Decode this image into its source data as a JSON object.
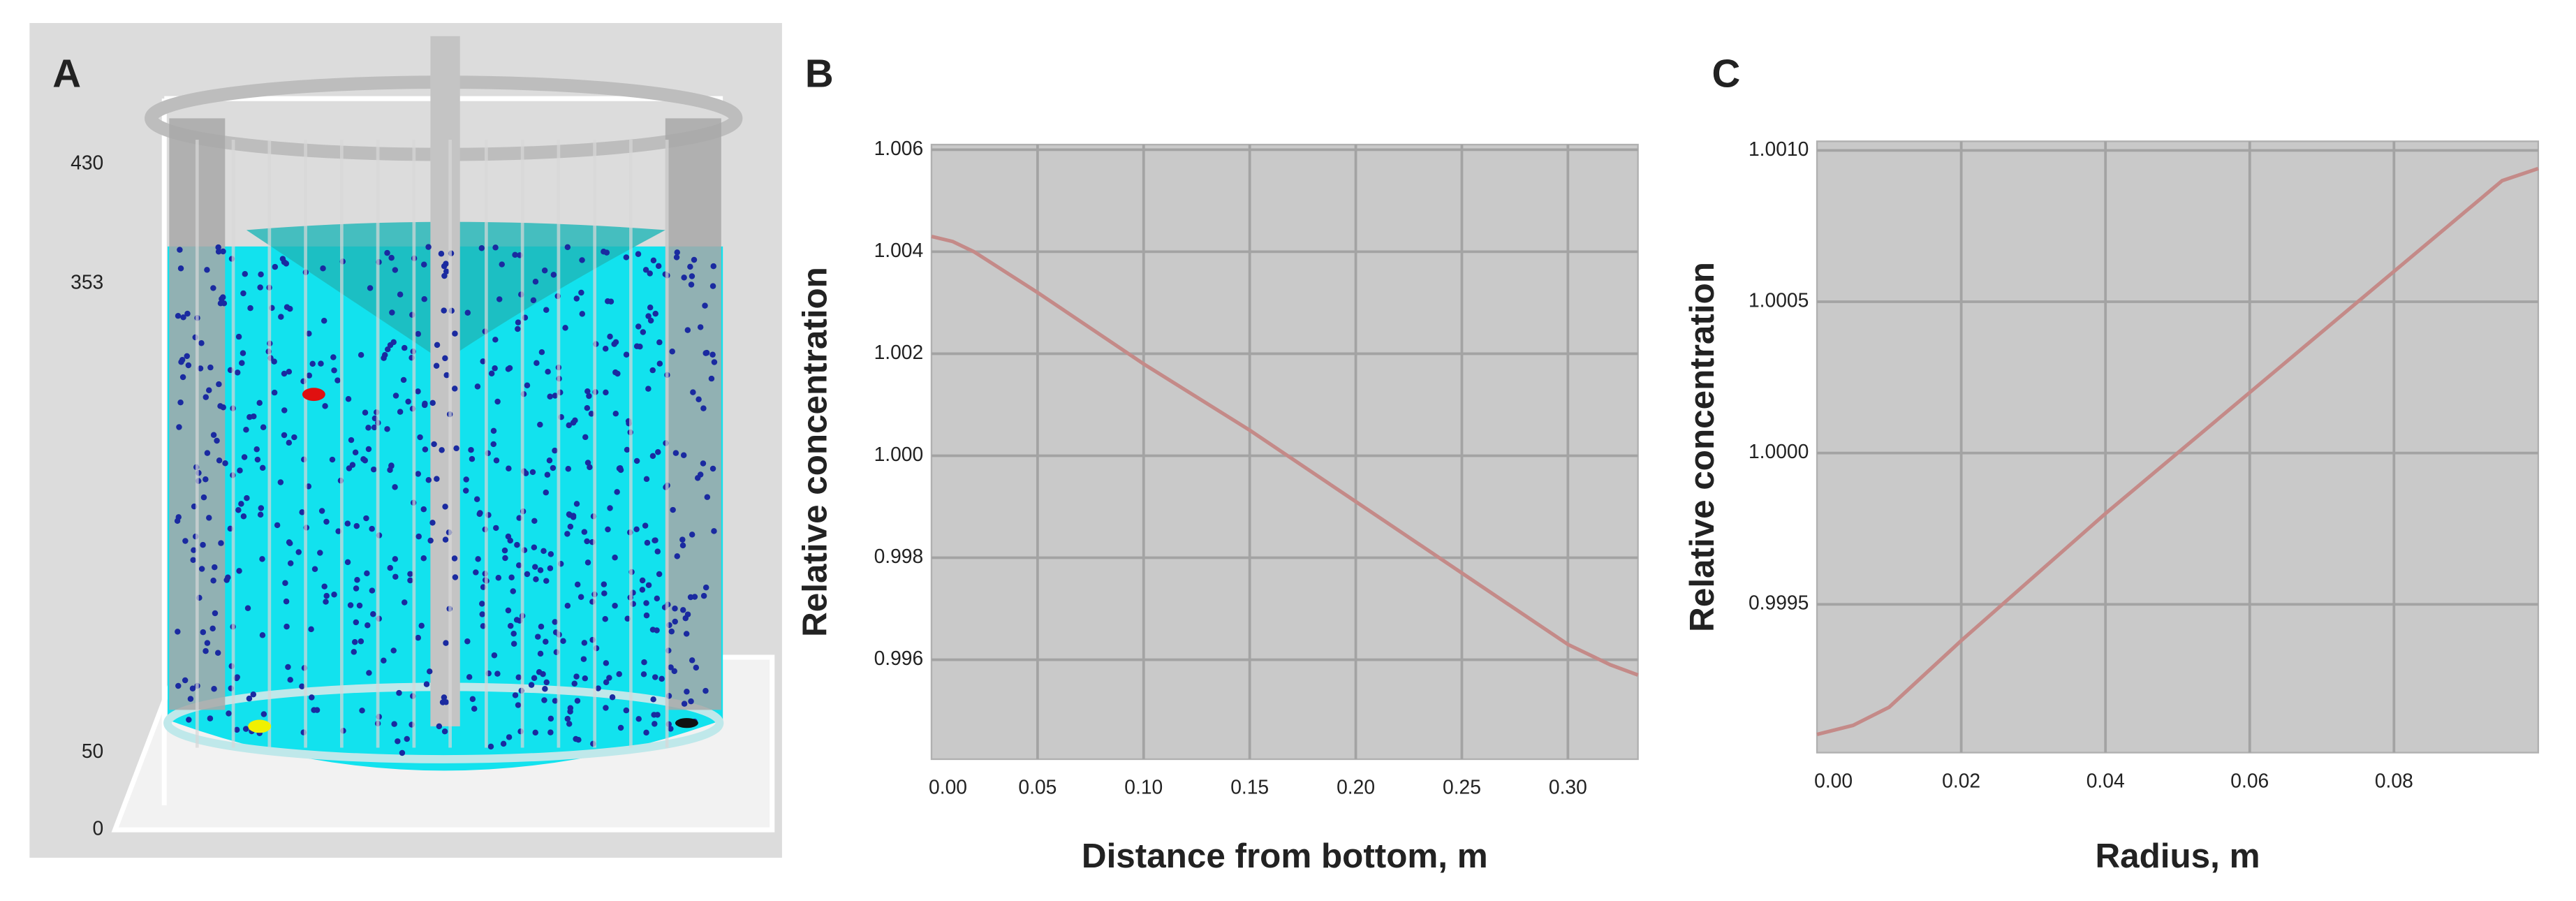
{
  "illustration": {
    "label": "A",
    "yticks": [
      430,
      353,
      50,
      0
    ]
  },
  "chart_data": [
    {
      "type": "line",
      "label": "B",
      "xlabel": "Distance from bottom, m",
      "ylabel": "Relative concentration",
      "x": [
        0,
        0.01,
        0.02,
        0.05,
        0.1,
        0.15,
        0.2,
        0.25,
        0.3,
        0.32,
        0.333
      ],
      "series": [
        {
          "color": "#c48a88",
          "values": [
            1.0043,
            1.0042,
            1.004,
            1.0032,
            1.0018,
            1.0005,
            0.9991,
            0.9977,
            0.9963,
            0.9959,
            0.9957
          ]
        }
      ],
      "xlim": [
        0,
        0.333
      ],
      "ylim": [
        0.99405,
        1.0061
      ],
      "xticks": [
        {
          "value": 0,
          "label": "0.00"
        },
        0.05,
        {
          "value": 0.1,
          "label": "0.10"
        },
        0.15,
        {
          "value": 0.2,
          "label": "0.20"
        },
        0.25,
        {
          "value": 0.3,
          "label": "0.30"
        }
      ],
      "yticks": [
        1.006,
        1.004,
        1.002,
        {
          "value": 1.0,
          "label": "1.000"
        },
        0.998,
        0.996
      ],
      "grid": true
    },
    {
      "type": "line",
      "label": "C",
      "xlabel": "Radius, m",
      "ylabel": "Relative concentration",
      "x": [
        0,
        0.005,
        0.01,
        0.02,
        0.04,
        0.06,
        0.08,
        0.09,
        0.095,
        0.1
      ],
      "series": [
        {
          "color": "#c48a88",
          "values": [
            0.99907,
            0.9991,
            0.99916,
            0.99938,
            0.9998,
            1.0002,
            1.0006,
            1.0008,
            1.0009,
            1.00094
          ]
        }
      ],
      "xlim": [
        0,
        0.1
      ],
      "ylim": [
        0.99901,
        1.00103
      ],
      "xticks": [
        {
          "value": 0,
          "label": "0.00"
        },
        0.02,
        0.04,
        0.06,
        0.08
      ],
      "yticks": [
        {
          "value": 1.001,
          "label": "1.0010"
        },
        1.0005,
        {
          "value": 1.0,
          "label": "1.0000"
        },
        0.9995
      ],
      "grid": true
    }
  ]
}
